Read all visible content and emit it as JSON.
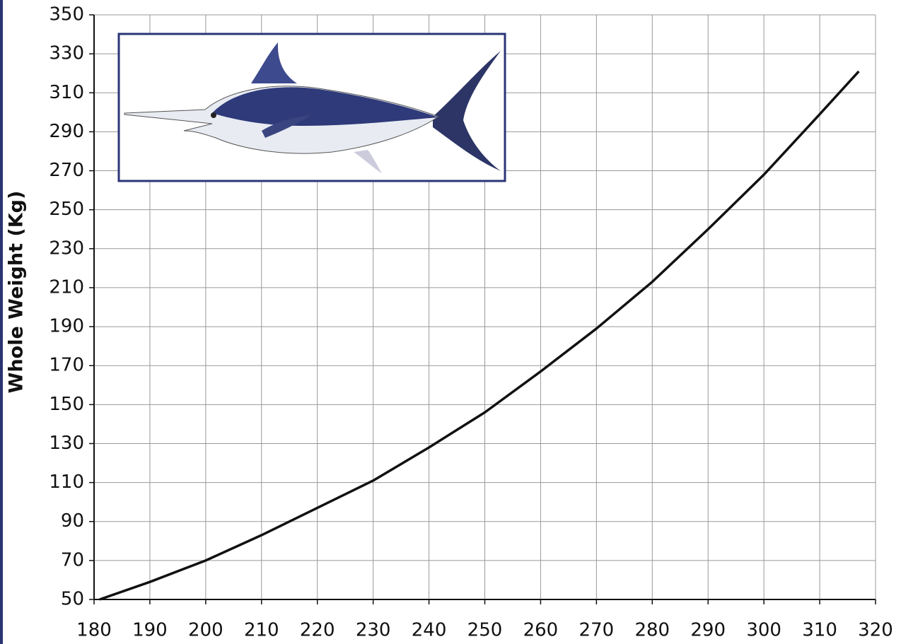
{
  "chart_data": {
    "type": "line",
    "y_label": "Whole Weight (Kg)",
    "x": [
      181,
      190,
      200,
      210,
      220,
      230,
      240,
      250,
      260,
      270,
      280,
      290,
      300,
      310,
      317
    ],
    "series": [
      {
        "color": "#111111",
        "values": [
          50,
          59,
          70,
          83,
          97,
          111,
          128,
          146,
          167,
          189,
          213,
          240,
          268,
          299,
          321
        ]
      }
    ],
    "xlim": [
      180,
      320
    ],
    "xticks": [
      180,
      190,
      200,
      210,
      220,
      230,
      240,
      250,
      260,
      270,
      280,
      290,
      300,
      310,
      320
    ],
    "ylim": [
      50,
      350
    ],
    "yticks": [
      50,
      70,
      90,
      110,
      130,
      150,
      170,
      190,
      210,
      230,
      250,
      270,
      290,
      310,
      330,
      350
    ],
    "grid": true
  }
}
